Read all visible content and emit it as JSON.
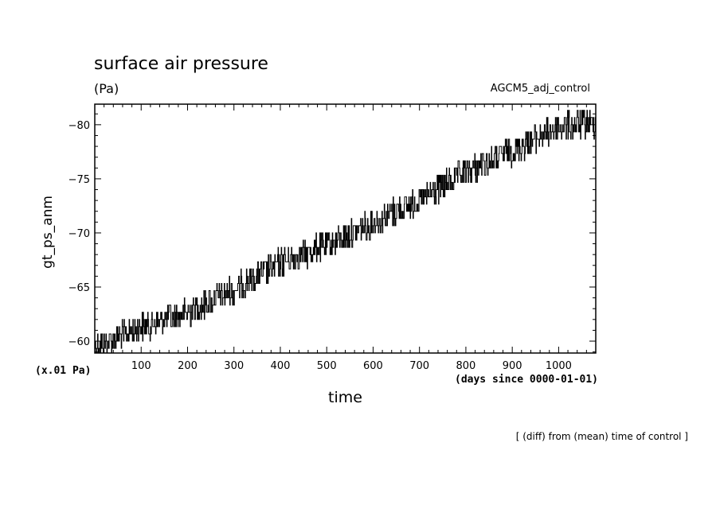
{
  "figure": {
    "title": "surface air pressure",
    "units": "(Pa)",
    "run_name": "AGCM5_adj_control",
    "scale_note": "(x.01 Pa)",
    "x_unit_note": "(days since 0000-01-01)",
    "footer_note": "[ (diff) from (mean) time of control ]"
  },
  "chart_data": {
    "type": "line",
    "title": "surface air pressure",
    "xlabel": "time",
    "ylabel": "gt_ps_anm",
    "xlim": [
      0,
      1080
    ],
    "ylim": [
      -58.9,
      -81.9
    ],
    "y_inverted": true,
    "grid": false,
    "xticks": [
      100,
      200,
      300,
      400,
      500,
      600,
      700,
      800,
      900,
      1000
    ],
    "yticks": [
      -80,
      -75,
      -70,
      -65,
      -60
    ],
    "series": [
      {
        "noise_amplitude": 1.3,
        "x": [
          0,
          100,
          200,
          300,
          400,
          500,
          600,
          700,
          800,
          900,
          1000,
          1080
        ],
        "values": [
          -59.5,
          -61.3,
          -62.6,
          -64.8,
          -67.3,
          -68.8,
          -71.0,
          -73.0,
          -75.6,
          -77.6,
          -79.8,
          -80.2
        ]
      }
    ],
    "color": "#000000"
  }
}
